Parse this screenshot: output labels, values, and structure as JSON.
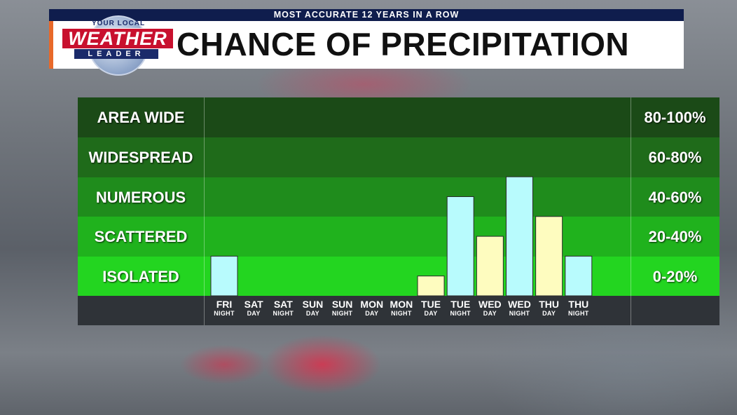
{
  "header": {
    "tagline": "MOST ACCURATE 12 YEARS IN A ROW",
    "title": "CHANCE OF PRECIPITATION",
    "logo_top": "YOUR LOCAL",
    "logo_main": "WEATHER",
    "logo_bottom": "LEADER"
  },
  "colors": {
    "night_bar": "#b8fbfd",
    "day_bar": "#fefcbf",
    "band_area_wide": "#1b4a17",
    "band_widespread": "#1f6b1a",
    "band_numerous": "#1f8c1c",
    "band_scattered": "#20b21d",
    "band_isolated": "#23d520"
  },
  "chart_data": {
    "type": "bar",
    "title": "CHANCE OF PRECIPITATION",
    "ylim": [
      0,
      100
    ],
    "categories": [
      {
        "day": "FRI",
        "period": "NIGHT"
      },
      {
        "day": "SAT",
        "period": "DAY"
      },
      {
        "day": "SAT",
        "period": "NIGHT"
      },
      {
        "day": "SUN",
        "period": "DAY"
      },
      {
        "day": "SUN",
        "period": "NIGHT"
      },
      {
        "day": "MON",
        "period": "DAY"
      },
      {
        "day": "MON",
        "period": "NIGHT"
      },
      {
        "day": "TUE",
        "period": "DAY"
      },
      {
        "day": "TUE",
        "period": "NIGHT"
      },
      {
        "day": "WED",
        "period": "DAY"
      },
      {
        "day": "WED",
        "period": "NIGHT"
      },
      {
        "day": "THU",
        "period": "DAY"
      },
      {
        "day": "THU",
        "period": "NIGHT"
      }
    ],
    "values": [
      20,
      0,
      0,
      0,
      0,
      0,
      0,
      10,
      50,
      30,
      60,
      40,
      20
    ],
    "bands": [
      {
        "label": "AREA WIDE",
        "range": "80-100%"
      },
      {
        "label": "WIDESPREAD",
        "range": "60-80%"
      },
      {
        "label": "NUMEROUS",
        "range": "40-60%"
      },
      {
        "label": "SCATTERED",
        "range": "20-40%"
      },
      {
        "label": "ISOLATED",
        "range": "0-20%"
      }
    ]
  }
}
